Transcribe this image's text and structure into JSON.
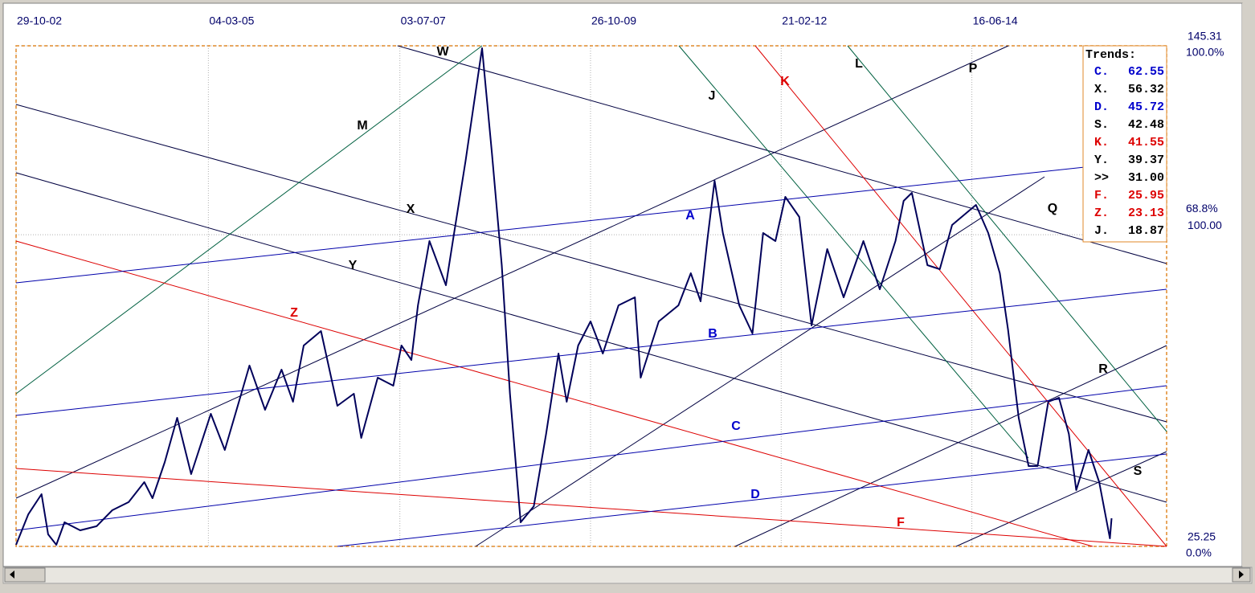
{
  "chart_data": {
    "type": "line",
    "xlim": [
      2002.83,
      2016.83
    ],
    "xticks": [
      {
        "value": 2002.83,
        "label": "29-10-02"
      },
      {
        "value": 2005.17,
        "label": "04-03-05"
      },
      {
        "value": 2007.5,
        "label": "03-07-07"
      },
      {
        "value": 2009.82,
        "label": "26-10-09"
      },
      {
        "value": 2012.14,
        "label": "21-02-12"
      },
      {
        "value": 2014.46,
        "label": "16-06-14"
      }
    ],
    "ylim": [
      25.25,
      145.31
    ],
    "yticks": [
      145.31,
      {
        "value": 100,
        "label": "100.00"
      },
      25.25
    ],
    "y2lim": [
      0,
      100
    ],
    "y2ticks": [
      {
        "value": 100,
        "label": "100.0%"
      },
      {
        "value": 68.8,
        "label": "68.8%"
      },
      {
        "value": 0,
        "label": "0.0%"
      }
    ],
    "grid": true,
    "series": [
      {
        "color": "#00005a",
        "x": [
          2002.83,
          2002.98,
          2003.14,
          2003.22,
          2003.32,
          2003.42,
          2003.61,
          2003.81,
          2004.0,
          2004.2,
          2004.39,
          2004.49,
          2004.64,
          2004.79,
          2004.96,
          2005.2,
          2005.37,
          2005.57,
          2005.67,
          2005.86,
          2006.06,
          2006.2,
          2006.33,
          2006.54,
          2006.74,
          2006.94,
          2007.03,
          2007.23,
          2007.42,
          2007.52,
          2007.64,
          2007.72,
          2007.86,
          2008.06,
          2008.16,
          2008.3,
          2008.4,
          2008.5,
          2008.62,
          2008.74,
          2008.84,
          2008.97,
          2009.13,
          2009.28,
          2009.43,
          2009.53,
          2009.67,
          2009.82,
          2009.97,
          2010.16,
          2010.36,
          2010.43,
          2010.65,
          2010.89,
          2011.04,
          2011.16,
          2011.24,
          2011.33,
          2011.43,
          2011.63,
          2011.79,
          2011.92,
          2012.07,
          2012.19,
          2012.36,
          2012.51,
          2012.7,
          2012.9,
          2013.14,
          2013.34,
          2013.53,
          2013.63,
          2013.73,
          2013.92,
          2014.07,
          2014.22,
          2014.51,
          2014.66,
          2014.8,
          2014.9,
          2015.03,
          2015.15,
          2015.26,
          2015.39,
          2015.52,
          2015.64,
          2015.73,
          2015.88,
          2016.01,
          2016.14,
          2016.16
        ],
        "values": [
          25.64,
          32.97,
          37.78,
          28.15,
          25.64,
          31.04,
          29.11,
          30.08,
          33.93,
          35.86,
          40.67,
          36.82,
          45.49,
          56.09,
          42.6,
          57.05,
          48.38,
          61.87,
          68.62,
          58.02,
          67.65,
          59.94,
          73.43,
          76.9,
          58.98,
          61.87,
          51.27,
          65.72,
          63.8,
          73.43,
          69.96,
          83.07,
          98.48,
          87.89,
          100.41,
          117.75,
          131.24,
          144.73,
          119.68,
          92.7,
          61.87,
          31.04,
          34.89,
          52.24,
          71.51,
          59.94,
          73.43,
          79.21,
          71.51,
          83.07,
          84.99,
          65.72,
          79.21,
          83.07,
          90.78,
          84.03,
          98.48,
          112.94,
          100.41,
          83.07,
          76.32,
          100.41,
          98.48,
          109.08,
          104.26,
          78.25,
          96.56,
          84.99,
          98.48,
          86.92,
          98.48,
          108.12,
          110.05,
          92.7,
          91.74,
          102.34,
          107.16,
          100.41,
          90.78,
          77.29,
          56.09,
          44.53,
          44.53,
          59.94,
          60.91,
          52.24,
          38.75,
          48.38,
          40.67,
          27.18,
          32.0
        ]
      }
    ],
    "line_labels": [
      "W",
      "M",
      "X",
      "Y",
      "Z",
      "J",
      "K",
      "L",
      "P",
      "Q",
      "R",
      "S",
      "A",
      "B",
      "C",
      "D",
      "F"
    ],
    "trends": {
      "title": "Trends:",
      "names": [
        "C.",
        "X.",
        "D.",
        "S.",
        "K.",
        "Y.",
        ">>",
        "F.",
        "Z.",
        "J."
      ],
      "values": [
        62.55,
        56.32,
        45.72,
        42.48,
        41.55,
        39.37,
        31,
        25.95,
        23.13,
        18.87
      ],
      "value_labels": [
        "62.55",
        "56.32",
        "45.72",
        "42.48",
        "41.55",
        "39.37",
        "31.00",
        "25.95",
        "23.13",
        "18.87"
      ],
      "colors": [
        "#0000cc",
        "#000000",
        "#0000cc",
        "#000000",
        "#dd0000",
        "#000000",
        "#000000",
        "#dd0000",
        "#dd0000",
        "#000000"
      ]
    }
  }
}
